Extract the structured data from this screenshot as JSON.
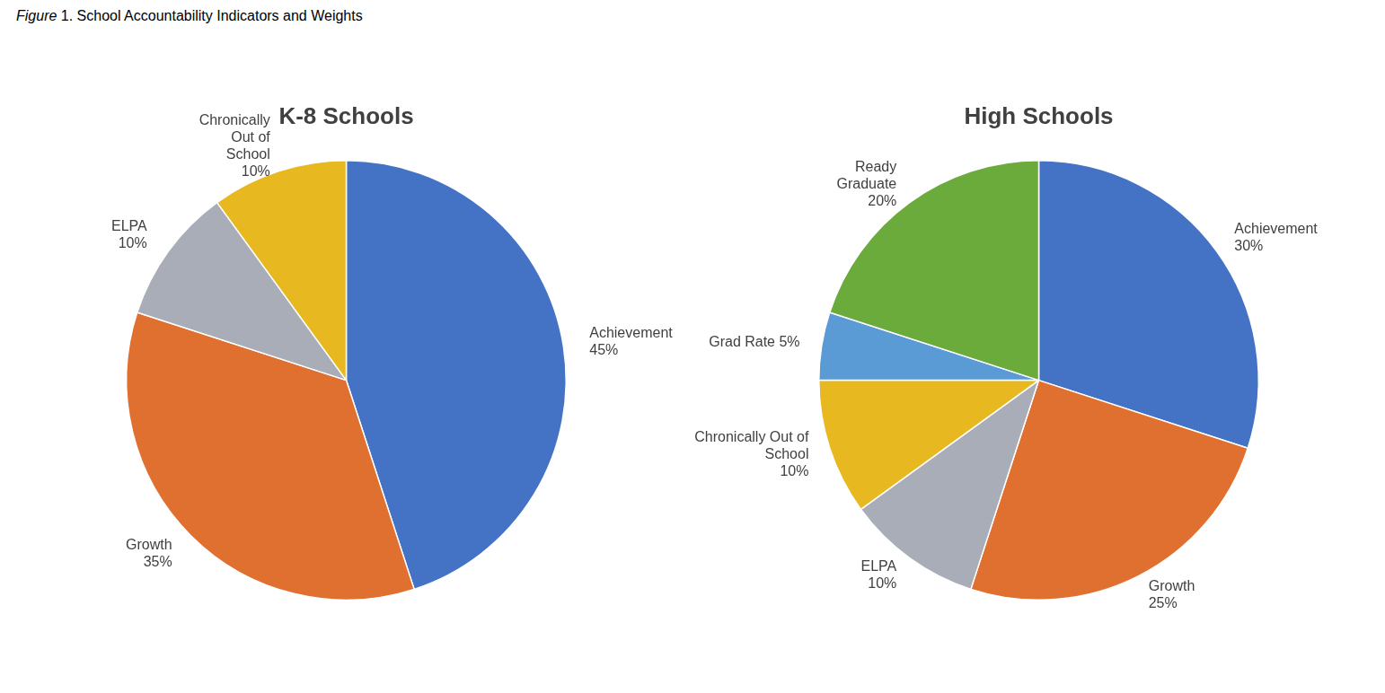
{
  "title": "Figure 1. School Accountability Indicators and Weights",
  "chart_data": [
    {
      "type": "pie",
      "title": "K-8 Schools",
      "categories": [
        "Achievement\n45%",
        "Growth\n35%",
        "ELPA\n10%",
        "Chronically\nOut of\nSchool\n10%"
      ],
      "values": [
        45,
        35,
        10,
        10
      ],
      "colors": [
        "#4472C4",
        "#E07030",
        "#A8ADB8",
        "#E8B820"
      ],
      "legend": false
    },
    {
      "type": "pie",
      "title": "High Schools",
      "categories": [
        "Achievement\n30%",
        "Growth\n25%",
        "ELPA\n10%",
        "Chronically Out of\nSchool\n10%",
        "Grad Rate 5%",
        "Ready\nGraduate\n20%"
      ],
      "values": [
        30,
        25,
        10,
        10,
        5,
        20
      ],
      "colors": [
        "#4472C4",
        "#E07030",
        "#A8ADB8",
        "#E8B820",
        "#5B9BD5",
        "#6AAB3C"
      ],
      "legend": false
    }
  ]
}
